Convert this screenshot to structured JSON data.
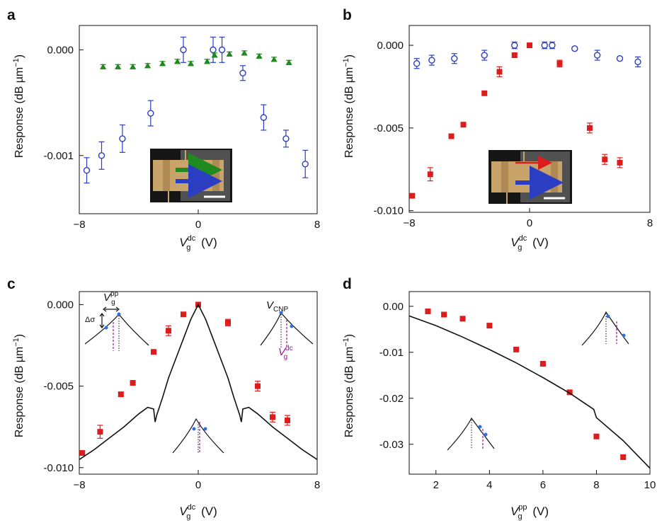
{
  "colors": {
    "blue": "#2b3ec2",
    "green": "#1f8a1f",
    "red": "#dd1c1c",
    "purple": "#9b1a8f",
    "curve": "#111111",
    "dot": "#2f6fe0"
  },
  "chart_data": [
    {
      "panel": "a",
      "type": "scatter",
      "xlabel": {
        "sym": "V",
        "sup": "dc",
        "sub": "g",
        "unit": "(V)"
      },
      "ylabel": {
        "pre": "Response (dB µm",
        "sup": "−1",
        "post": ")"
      },
      "xlim": [
        -8,
        8
      ],
      "ylim": [
        -0.00155,
        0.00023
      ],
      "xticks": [
        -8,
        0,
        8
      ],
      "xtick_labels": [
        "−8",
        "0",
        "8"
      ],
      "yticks": [
        0,
        -0.001
      ],
      "ytick_labels": [
        "0.000",
        "-0.001"
      ],
      "inset": "device image with green and blue arrows",
      "series": [
        {
          "marker": "open-circle",
          "color": "blue",
          "points": [
            [
              -7.5,
              -0.00114,
              0.00012
            ],
            [
              -6.5,
              -0.001,
              0.00013
            ],
            [
              -5.1,
              -0.00084,
              0.00013
            ],
            [
              -3.2,
              -0.0006,
              0.00012
            ],
            [
              -1.0,
              0.0,
              0.00012
            ],
            [
              1.0,
              0.0,
              0.00012
            ],
            [
              1.6,
              0.0,
              0.00012
            ],
            [
              3.0,
              -0.00022,
              7e-05
            ],
            [
              4.4,
              -0.00064,
              0.00012
            ],
            [
              5.9,
              -0.00084,
              8e-05
            ],
            [
              7.2,
              -0.00108,
              0.00013
            ]
          ]
        },
        {
          "marker": "triangle",
          "color": "green",
          "points": [
            [
              -6.4,
              -0.00016,
              2e-05
            ],
            [
              -5.4,
              -0.00016,
              2e-05
            ],
            [
              -4.4,
              -0.00016,
              2e-05
            ],
            [
              -3.4,
              -0.00015,
              2e-05
            ],
            [
              -2.4,
              -0.00013,
              2e-05
            ],
            [
              -1.4,
              -0.00011,
              2e-05
            ],
            [
              -0.5,
              -0.00013,
              2e-05
            ],
            [
              0.6,
              -0.00011,
              2e-05
            ],
            [
              1.1,
              -5e-05,
              2e-05
            ],
            [
              2.1,
              -4e-05,
              2e-05
            ],
            [
              3.1,
              -3e-05,
              2e-05
            ],
            [
              4.1,
              -6e-05,
              2e-05
            ],
            [
              5.1,
              -9e-05,
              2e-05
            ],
            [
              6.1,
              -0.00012,
              2e-05
            ]
          ]
        }
      ]
    },
    {
      "panel": "b",
      "type": "scatter",
      "xlabel": {
        "sym": "V",
        "sup": "dc",
        "sub": "g",
        "unit": "(V)"
      },
      "ylabel": {
        "pre": "Response (dB µm",
        "sup": "−1",
        "post": ")"
      },
      "xlim": [
        -8,
        8
      ],
      "ylim": [
        -0.0101,
        0.0012
      ],
      "xticks": [
        -8,
        0,
        8
      ],
      "xtick_labels": [
        "−8",
        "0",
        "8"
      ],
      "yticks": [
        0,
        -0.005,
        -0.01
      ],
      "ytick_labels": [
        "0.000",
        "-0.005",
        "-0.010"
      ],
      "inset": "device image with red and blue arrows",
      "series": [
        {
          "marker": "open-circle",
          "color": "blue",
          "points": [
            [
              -7.5,
              -0.0011,
              0.0003
            ],
            [
              -6.5,
              -0.0009,
              0.0003
            ],
            [
              -5.0,
              -0.0008,
              0.0003
            ],
            [
              -3.0,
              -0.0006,
              0.0003
            ],
            [
              -1.0,
              0.0,
              0.0002
            ],
            [
              1.0,
              0.0,
              0.0002
            ],
            [
              1.5,
              0.0,
              0.0002
            ],
            [
              3.0,
              -0.0002,
              0.0001
            ],
            [
              4.5,
              -0.0006,
              0.0003
            ],
            [
              6.0,
              -0.0008,
              0.0001
            ],
            [
              7.2,
              -0.001,
              0.0003
            ]
          ]
        },
        {
          "marker": "filled-square",
          "color": "red",
          "points": [
            [
              -7.8,
              -0.0091,
              0.0001
            ],
            [
              -6.6,
              -0.0078,
              0.0004
            ],
            [
              -5.2,
              -0.0055,
              0.0001
            ],
            [
              -4.4,
              -0.0048,
              0.0001
            ],
            [
              -3.0,
              -0.0029,
              0.0001
            ],
            [
              -2.0,
              -0.0016,
              0.0003
            ],
            [
              -1.0,
              -0.0006,
              0.0001
            ],
            [
              0.0,
              0.0,
              0.0001
            ],
            [
              2.0,
              -0.0011,
              0.0002
            ],
            [
              4.0,
              -0.005,
              0.0003
            ],
            [
              5.0,
              -0.0069,
              0.0003
            ],
            [
              6.0,
              -0.0071,
              0.0003
            ]
          ]
        }
      ]
    },
    {
      "panel": "c",
      "type": "scatter",
      "xlabel": {
        "sym": "V",
        "sup": "dc",
        "sub": "g",
        "unit": "(V)"
      },
      "ylabel": {
        "pre": "Response (dB µm",
        "sup": "−1",
        "post": ")"
      },
      "xlim": [
        -8,
        8
      ],
      "ylim": [
        -0.0104,
        0.0008
      ],
      "xticks": [
        -8,
        0,
        8
      ],
      "xtick_labels": [
        "−8",
        "0",
        "8"
      ],
      "yticks": [
        0,
        -0.005,
        -0.01
      ],
      "ytick_labels": [
        "0.000",
        "-0.005",
        "-0.010"
      ],
      "series": [
        {
          "marker": "filled-square",
          "color": "red",
          "points": [
            [
              -7.8,
              -0.0091,
              0.0001
            ],
            [
              -6.6,
              -0.0078,
              0.0004
            ],
            [
              -5.2,
              -0.0055,
              0.0001
            ],
            [
              -4.4,
              -0.0048,
              0.0001
            ],
            [
              -3.0,
              -0.0029,
              0.0001
            ],
            [
              -2.0,
              -0.0016,
              0.0003
            ],
            [
              -1.0,
              -0.0006,
              0.0001
            ],
            [
              0.0,
              0.0,
              0.0001
            ],
            [
              2.0,
              -0.0011,
              0.0002
            ],
            [
              4.0,
              -0.005,
              0.0003
            ],
            [
              5.0,
              -0.0069,
              0.0003
            ],
            [
              6.0,
              -0.0071,
              0.0003
            ]
          ]
        },
        {
          "marker": "line",
          "color": "curve",
          "points": [
            [
              -8,
              -0.0095
            ],
            [
              -7,
              -0.0089
            ],
            [
              -6,
              -0.0082
            ],
            [
              -5,
              -0.0075
            ],
            [
              -4,
              -0.0067
            ],
            [
              -3.4,
              -0.0063
            ],
            [
              -3.0,
              -0.0064
            ],
            [
              -2.9,
              -0.0072
            ],
            [
              -2.8,
              -0.0068
            ],
            [
              -2.4,
              -0.0057
            ],
            [
              -2,
              -0.0045
            ],
            [
              -1.5,
              -0.0033
            ],
            [
              -1,
              -0.0021
            ],
            [
              -0.5,
              -0.0009
            ],
            [
              0,
              0.0
            ],
            [
              0.5,
              -0.0009
            ],
            [
              1,
              -0.0021
            ],
            [
              1.5,
              -0.0033
            ],
            [
              2,
              -0.0045
            ],
            [
              2.4,
              -0.0057
            ],
            [
              2.8,
              -0.0068
            ],
            [
              2.9,
              -0.0072
            ],
            [
              3.0,
              -0.0064
            ],
            [
              3.4,
              -0.0063
            ],
            [
              4,
              -0.0067
            ],
            [
              5,
              -0.0075
            ],
            [
              6,
              -0.0082
            ],
            [
              7,
              -0.0089
            ],
            [
              8,
              -0.0095
            ]
          ]
        }
      ],
      "annotations": {
        "vpp": {
          "sym": "V",
          "sup": "pp",
          "sub": "g"
        },
        "dsigma": "Δσ",
        "vcnp": {
          "sym": "V",
          "sub": "CNP"
        },
        "vdc": {
          "sym": "V",
          "sup": "dc",
          "sub": "g"
        }
      }
    },
    {
      "panel": "d",
      "type": "scatter",
      "xlabel": {
        "sym": "V",
        "sup": "pp",
        "sub": "g",
        "unit": "(V)"
      },
      "ylabel": {
        "pre": "Response (dB µm",
        "sup": "−1",
        "post": ")"
      },
      "xlim": [
        1,
        10
      ],
      "ylim": [
        -0.0365,
        0.0032
      ],
      "xticks": [
        2,
        4,
        6,
        8,
        10
      ],
      "xtick_labels": [
        "2",
        "4",
        "6",
        "8",
        "10"
      ],
      "yticks": [
        0,
        -0.01,
        -0.02,
        -0.03
      ],
      "ytick_labels": [
        "0.00",
        "-0.01",
        "-0.02",
        "-0.03"
      ],
      "series": [
        {
          "marker": "filled-square",
          "color": "red",
          "points": [
            [
              1.7,
              -0.0011,
              0.0002
            ],
            [
              2.3,
              -0.0018,
              0.0002
            ],
            [
              3.0,
              -0.0027,
              0.0002
            ],
            [
              4.0,
              -0.0042,
              0.0003
            ],
            [
              5.0,
              -0.0094,
              0.0003
            ],
            [
              6.0,
              -0.0125,
              0.0003
            ],
            [
              7.0,
              -0.0187,
              0.0003
            ],
            [
              8.0,
              -0.0283,
              0.0004
            ],
            [
              9.0,
              -0.0328,
              0.0004
            ]
          ]
        },
        {
          "marker": "line",
          "color": "curve",
          "points": [
            [
              1,
              -0.0021
            ],
            [
              2,
              -0.0042
            ],
            [
              3,
              -0.0067
            ],
            [
              4,
              -0.0094
            ],
            [
              5,
              -0.0123
            ],
            [
              6,
              -0.0155
            ],
            [
              7,
              -0.0189
            ],
            [
              7.9,
              -0.0224
            ],
            [
              8.0,
              -0.0242
            ],
            [
              9,
              -0.0292
            ],
            [
              10,
              -0.0352
            ]
          ]
        }
      ]
    }
  ]
}
